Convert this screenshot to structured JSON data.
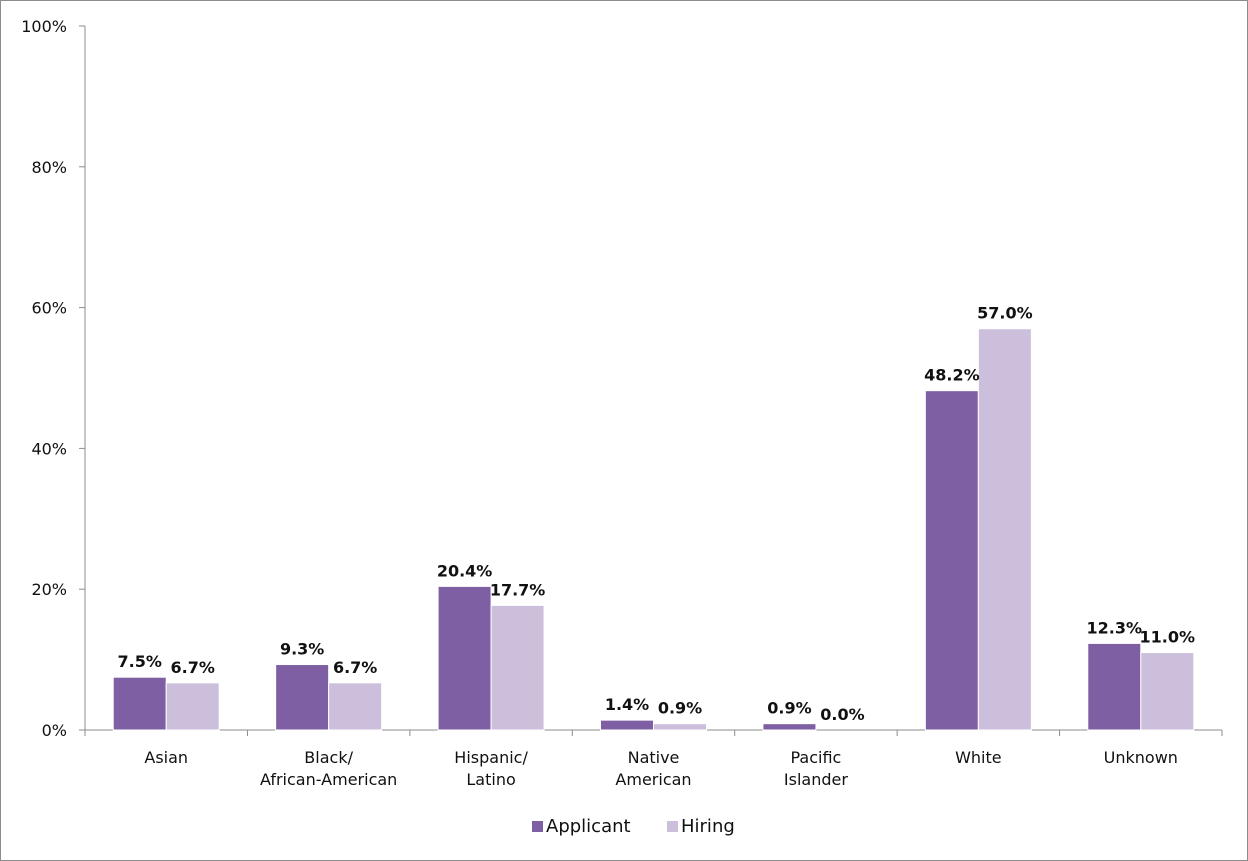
{
  "chart_data": {
    "type": "bar",
    "categories": [
      [
        "Asian"
      ],
      [
        "Black/",
        "African-American"
      ],
      [
        "Hispanic/",
        "Latino"
      ],
      [
        "Native",
        "American"
      ],
      [
        "Pacific",
        "Islander"
      ],
      [
        "White"
      ],
      [
        "Unknown"
      ]
    ],
    "series": [
      {
        "name": "Applicant",
        "color": "#7f5fa3",
        "values": [
          7.5,
          9.3,
          20.4,
          1.4,
          0.9,
          48.2,
          12.3
        ],
        "labels": [
          "7.5%",
          "9.3%",
          "20.4%",
          "1.4%",
          "0.9%",
          "48.2%",
          "12.3%"
        ]
      },
      {
        "name": "Hiring",
        "color": "#ccbfdc",
        "values": [
          6.7,
          6.7,
          17.7,
          0.9,
          0.0,
          57.0,
          11.0
        ],
        "labels": [
          "6.7%",
          "6.7%",
          "17.7%",
          "0.9%",
          "0.0%",
          "57.0%",
          "11.0%"
        ]
      }
    ],
    "ylim": [
      0,
      100
    ],
    "yticks": [
      0,
      20,
      40,
      60,
      80,
      100
    ],
    "ytick_labels": [
      "0%",
      "20%",
      "40%",
      "60%",
      "80%",
      "100%"
    ],
    "grid": false,
    "legend_position": "bottom"
  }
}
